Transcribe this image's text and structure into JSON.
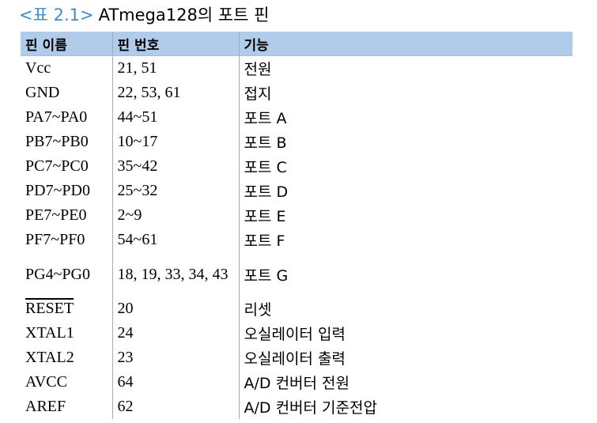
{
  "caption": {
    "tag": "<표 2.1>",
    "title": "ATmega128의 포트 핀"
  },
  "table": {
    "headers": [
      "핀 이름",
      "핀 번호",
      "기능"
    ],
    "rows": [
      {
        "name": "Vcc",
        "num": "21, 51",
        "func": "전원"
      },
      {
        "name": "GND",
        "num": "22, 53, 61",
        "func": "접지"
      },
      {
        "name": "PA7~PA0",
        "num": "44~51",
        "func": "포트 A"
      },
      {
        "name": "PB7~PB0",
        "num": "10~17",
        "func": "포트 B"
      },
      {
        "name": "PC7~PC0",
        "num": "35~42",
        "func": "포트 C"
      },
      {
        "name": "PD7~PD0",
        "num": "25~32",
        "func": "포트 D"
      },
      {
        "name": "PE7~PE0",
        "num": "2~9",
        "func": "포트 E"
      },
      {
        "name": "PF7~PF0",
        "num": "54~61",
        "func": "포트 F"
      },
      {
        "name": "PG4~PG0",
        "num": "18, 19, 33, 34, 43",
        "func": "포트 G"
      },
      {
        "name": "RESET",
        "num": "20",
        "func": "리셋"
      },
      {
        "name": "XTAL1",
        "num": "24",
        "func": "오실레이터 입력"
      },
      {
        "name": "XTAL2",
        "num": "23",
        "func": "오실레이터 출력"
      },
      {
        "name": "AVCC",
        "num": "64",
        "func": "A/D 컨버터 전원"
      },
      {
        "name": "AREF",
        "num": "62",
        "func": "A/D 컨버터 기준전압"
      }
    ]
  }
}
